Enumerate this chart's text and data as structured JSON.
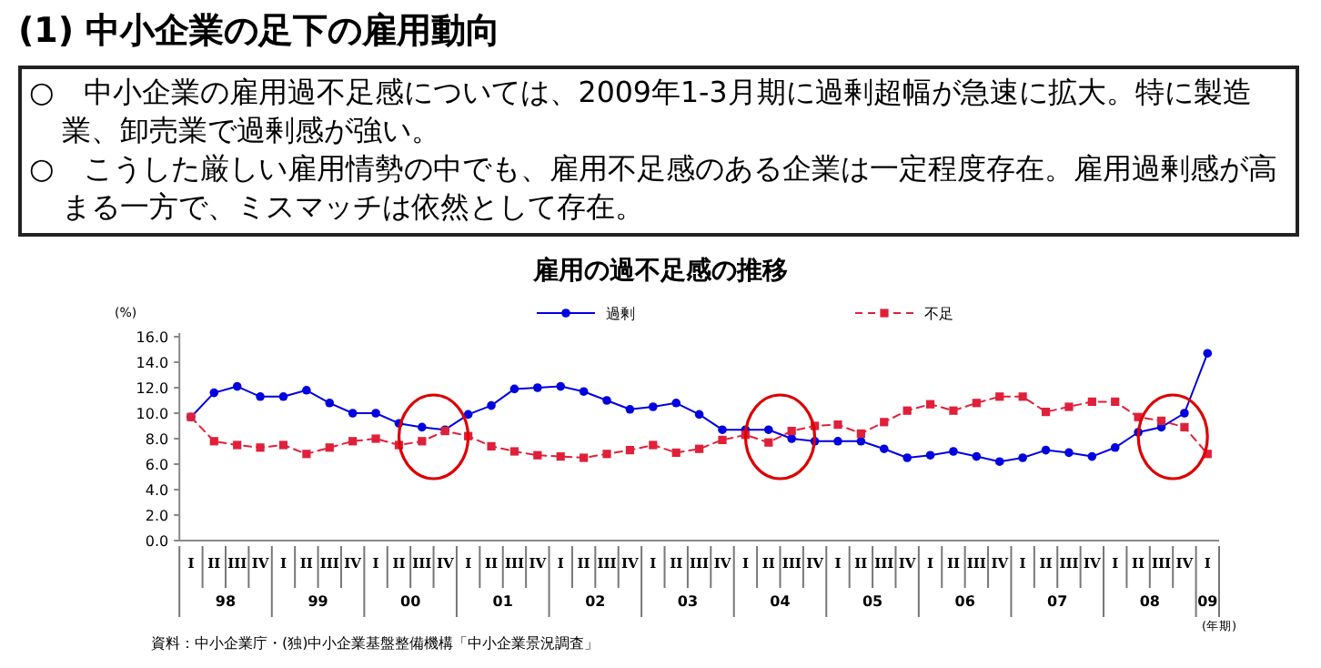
{
  "chart_data": {
    "type": "line",
    "title": "(1) 中小企業の足下の雇用動向",
    "subtitle": "雇用の過不足感の推移",
    "ylabel": "(%)",
    "categories": [
      "I",
      "II",
      "III",
      "IV",
      "I",
      "II",
      "III",
      "IV",
      "I",
      "II",
      "III",
      "IV",
      "I",
      "II",
      "III",
      "IV",
      "I",
      "II",
      "III",
      "IV",
      "I",
      "II",
      "III",
      "IV",
      "I",
      "II",
      "III",
      "IV",
      "I",
      "II",
      "III",
      "IV",
      "I",
      "II",
      "III",
      "IV",
      "I",
      "II",
      "III",
      "IV",
      "I",
      "II",
      "III",
      "IV",
      "I"
    ],
    "series": [
      {
        "name": "過剰",
        "color": "#0000e0",
        "marker": "circle",
        "line_style": "solid",
        "values": [
          9.7,
          11.6,
          12.1,
          11.3,
          11.3,
          11.8,
          10.8,
          10.0,
          10.0,
          9.2,
          8.9,
          8.7,
          9.9,
          10.6,
          11.9,
          12.0,
          12.1,
          11.7,
          11.0,
          10.3,
          10.5,
          10.8,
          9.9,
          8.7,
          8.7,
          8.7,
          8.0,
          7.8,
          7.8,
          7.8,
          7.2,
          6.5,
          6.7,
          7.0,
          6.6,
          6.2,
          6.5,
          7.1,
          6.9,
          6.6,
          7.3,
          8.5,
          8.9,
          10.0,
          14.7
        ]
      },
      {
        "name": "不足",
        "color": "#e0203a",
        "marker": "square",
        "line_style": "dashed",
        "values": [
          9.7,
          7.8,
          7.5,
          7.3,
          7.5,
          6.8,
          7.3,
          7.8,
          8.0,
          7.5,
          7.8,
          8.6,
          8.2,
          7.4,
          7.0,
          6.7,
          6.6,
          6.5,
          6.8,
          7.1,
          7.5,
          6.9,
          7.2,
          7.9,
          8.3,
          7.7,
          8.6,
          9.0,
          9.1,
          8.4,
          9.3,
          10.2,
          10.7,
          10.2,
          10.8,
          11.3,
          11.3,
          10.1,
          10.5,
          10.9,
          10.9,
          9.7,
          9.4,
          8.9,
          6.8
        ]
      }
    ],
    "ylim": [
      0,
      16
    ],
    "yticks": [
      {
        "value": 0,
        "label": "0.0"
      },
      {
        "value": 2,
        "label": "2.0"
      },
      {
        "value": 4,
        "label": "4.0"
      },
      {
        "value": 6,
        "label": "6.0"
      },
      {
        "value": 8,
        "label": "8.0"
      },
      {
        "value": 10,
        "label": "10.0"
      },
      {
        "value": 12,
        "label": "12.0"
      },
      {
        "value": 14,
        "label": "14.0"
      },
      {
        "value": 16,
        "label": "16.0"
      }
    ],
    "legend": "top",
    "grid": false,
    "annotations": [
      "○　中小企業の雇用過不足感については、2009年1-3月期に過剰超幅が急速に拡大。特に製造業、卸売業で過剰感が強い。",
      "○　こうした厳しい雇用情勢の中でも、雇用不足感のある企業は一定程度存在。雇用過剰感が高まる一方で、ミスマッチは依然として存在。",
      "98",
      "99",
      "00",
      "01",
      "02",
      "03",
      "04",
      "05",
      "06",
      "07",
      "08",
      "09",
      "(年期)",
      "資料：中小企業庁・(独)中小企業基盤整備機構「中小企業景況調査」"
    ]
  }
}
